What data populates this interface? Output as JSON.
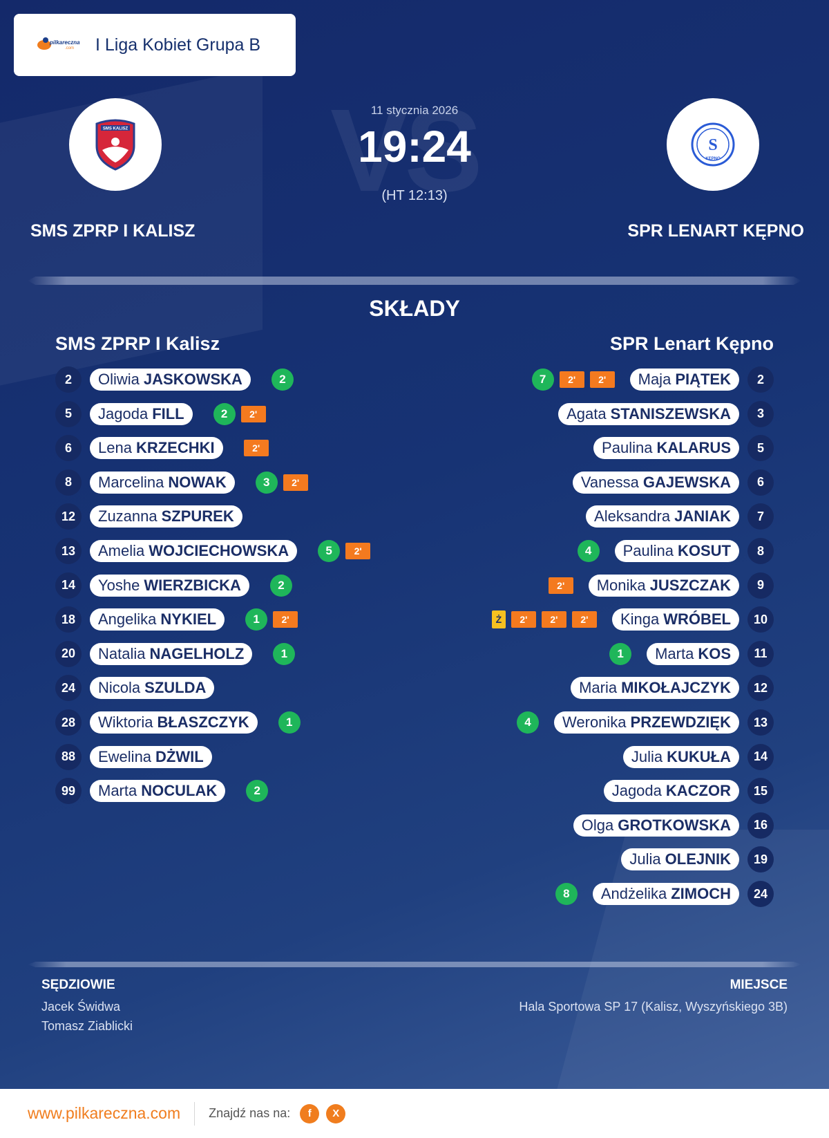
{
  "league": {
    "title": "I Liga Kobiet Grupa B",
    "logo_text": "pilkareczna",
    "logo_domain": ".com"
  },
  "match": {
    "date": "11 stycznia 2026",
    "score": "19:24",
    "halftime": "(HT 12:13)",
    "watermark": "VS",
    "home": {
      "name": "SMS ZPRP I KALISZ",
      "logo_text": "SMS KALISZ"
    },
    "away": {
      "name": "SPR LENART KĘPNO",
      "logo_text": "KĘPNO"
    }
  },
  "lineups": {
    "title": "SKŁADY",
    "home_team": "SMS ZPRP I Kalisz",
    "away_team": "SPR Lenart Kępno",
    "home": [
      {
        "number": "2",
        "first": "Oliwia",
        "last": "JASKOWSKA",
        "goals": "2",
        "suspensions": [],
        "yellow": ""
      },
      {
        "number": "5",
        "first": "Jagoda",
        "last": "FILL",
        "goals": "2",
        "suspensions": [
          "2'"
        ],
        "yellow": ""
      },
      {
        "number": "6",
        "first": "Lena",
        "last": "KRZECHKI",
        "goals": "",
        "suspensions": [
          "2'"
        ],
        "yellow": ""
      },
      {
        "number": "8",
        "first": "Marcelina",
        "last": "NOWAK",
        "goals": "3",
        "suspensions": [
          "2'"
        ],
        "yellow": ""
      },
      {
        "number": "12",
        "first": "Zuzanna",
        "last": "SZPUREK",
        "goals": "",
        "suspensions": [],
        "yellow": ""
      },
      {
        "number": "13",
        "first": "Amelia",
        "last": "WOJCIECHOWSKA",
        "goals": "5",
        "suspensions": [
          "2'"
        ],
        "yellow": ""
      },
      {
        "number": "14",
        "first": "Yoshe",
        "last": "WIERZBICKA",
        "goals": "2",
        "suspensions": [],
        "yellow": ""
      },
      {
        "number": "18",
        "first": "Angelika",
        "last": "NYKIEL",
        "goals": "1",
        "suspensions": [
          "2'"
        ],
        "yellow": ""
      },
      {
        "number": "20",
        "first": "Natalia",
        "last": "NAGELHOLZ",
        "goals": "1",
        "suspensions": [],
        "yellow": ""
      },
      {
        "number": "24",
        "first": "Nicola",
        "last": "SZULDA",
        "goals": "",
        "suspensions": [],
        "yellow": ""
      },
      {
        "number": "28",
        "first": "Wiktoria",
        "last": "BŁASZCZYK",
        "goals": "1",
        "suspensions": [],
        "yellow": ""
      },
      {
        "number": "88",
        "first": "Ewelina",
        "last": "DŻWIL",
        "goals": "",
        "suspensions": [],
        "yellow": ""
      },
      {
        "number": "99",
        "first": "Marta",
        "last": "NOCULAK",
        "goals": "2",
        "suspensions": [],
        "yellow": ""
      }
    ],
    "away": [
      {
        "number": "2",
        "first": "Maja",
        "last": "PIĄTEK",
        "goals": "7",
        "suspensions": [
          "2'",
          "2'"
        ],
        "yellow": ""
      },
      {
        "number": "3",
        "first": "Agata",
        "last": "STANISZEWSKA",
        "goals": "",
        "suspensions": [],
        "yellow": ""
      },
      {
        "number": "5",
        "first": "Paulina",
        "last": "KALARUS",
        "goals": "",
        "suspensions": [],
        "yellow": ""
      },
      {
        "number": "6",
        "first": "Vanessa",
        "last": "GAJEWSKA",
        "goals": "",
        "suspensions": [],
        "yellow": ""
      },
      {
        "number": "7",
        "first": "Aleksandra",
        "last": "JANIAK",
        "goals": "",
        "suspensions": [],
        "yellow": ""
      },
      {
        "number": "8",
        "first": "Paulina",
        "last": "KOSUT",
        "goals": "4",
        "suspensions": [],
        "yellow": ""
      },
      {
        "number": "9",
        "first": "Monika",
        "last": "JUSZCZAK",
        "goals": "",
        "suspensions": [
          "2'"
        ],
        "yellow": ""
      },
      {
        "number": "10",
        "first": "Kinga",
        "last": "WRÓBEL",
        "goals": "",
        "suspensions": [
          "2'",
          "2'",
          "2'"
        ],
        "yellow": "Ż"
      },
      {
        "number": "11",
        "first": "Marta",
        "last": "KOS",
        "goals": "1",
        "suspensions": [],
        "yellow": ""
      },
      {
        "number": "12",
        "first": "Maria",
        "last": "MIKOŁAJCZYK",
        "goals": "",
        "suspensions": [],
        "yellow": ""
      },
      {
        "number": "13",
        "first": "Weronika",
        "last": "PRZEWDZIĘK",
        "goals": "4",
        "suspensions": [],
        "yellow": ""
      },
      {
        "number": "14",
        "first": "Julia",
        "last": "KUKUŁA",
        "goals": "",
        "suspensions": [],
        "yellow": ""
      },
      {
        "number": "15",
        "first": "Jagoda",
        "last": "KACZOR",
        "goals": "",
        "suspensions": [],
        "yellow": ""
      },
      {
        "number": "16",
        "first": "Olga",
        "last": "GROTKOWSKA",
        "goals": "",
        "suspensions": [],
        "yellow": ""
      },
      {
        "number": "19",
        "first": "Julia",
        "last": "OLEJNIK",
        "goals": "",
        "suspensions": [],
        "yellow": ""
      },
      {
        "number": "24",
        "first": "Andżelika",
        "last": "ZIMOCH",
        "goals": "8",
        "suspensions": [],
        "yellow": ""
      }
    ]
  },
  "officials": {
    "label": "SĘDZIOWIE",
    "names": [
      "Jacek Świdwa",
      "Tomasz Ziablicki"
    ]
  },
  "venue": {
    "label": "MIEJSCE",
    "value": "Hala Sportowa SP 17 (Kalisz, Wyszyńskiego 3B)"
  },
  "footer": {
    "url": "www.pilkareczna.com",
    "find_us": "Znajdź nas na:",
    "facebook": "f",
    "x": "X"
  },
  "colors": {
    "goal": "#1fb65a",
    "suspension": "#f47a1f",
    "yellow_card": "#f6c120",
    "accent": "#f07d1e",
    "background": "#173374"
  }
}
